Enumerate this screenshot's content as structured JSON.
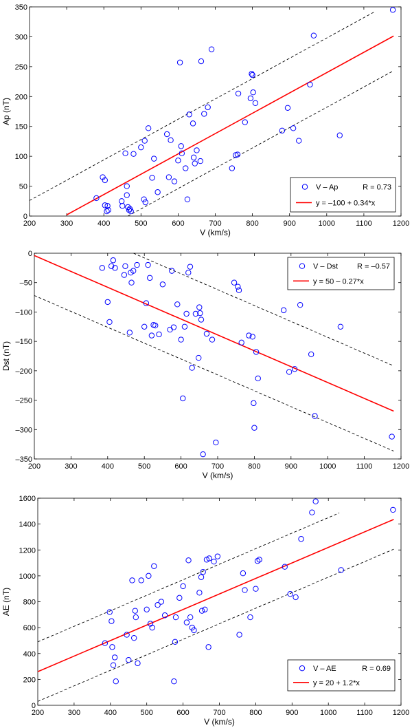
{
  "chart_data": [
    {
      "type": "scatter",
      "xlabel": "V (km/s)",
      "ylabel": "Ap (nT)",
      "xlim": [
        200,
        1200
      ],
      "ylim": [
        0,
        350
      ],
      "xticks": [
        200,
        300,
        400,
        500,
        600,
        700,
        800,
        900,
        1000,
        1100,
        1200
      ],
      "yticks": [
        0,
        50,
        100,
        150,
        200,
        250,
        300,
        350
      ],
      "xtick_labels": [
        "200",
        "300",
        "400",
        "500",
        "600",
        "700",
        "800",
        "900",
        "1000",
        "1100",
        "1200"
      ],
      "ytick_labels": [
        "0",
        "50",
        "100",
        "150",
        "200",
        "250",
        "300",
        "350"
      ],
      "legend_position": "bottom-right",
      "legend": [
        {
          "name": "V – Ap",
          "extra": "R = 0.73"
        },
        {
          "name": "y = –100 + 0.34*x",
          "extra": ""
        }
      ],
      "colors": {
        "points": "#0000ff",
        "fit": "#ff0000",
        "bounds": "#000000"
      },
      "fit": {
        "intercept": -100,
        "slope": 0.34,
        "x_range": [
          300,
          1180
        ]
      },
      "bounds": [
        {
          "intercept": -42,
          "slope": 0.34,
          "x_range": [
            200,
            1130
          ]
        },
        {
          "intercept": -158,
          "slope": 0.34,
          "x_range": [
            465,
            1180
          ]
        }
      ],
      "points": {
        "x": [
          380,
          397,
          403,
          403,
          408,
          410,
          412,
          448,
          450,
          458,
          462,
          462,
          465,
          468,
          470,
          473,
          480,
          500,
          508,
          510,
          512,
          520,
          530,
          535,
          545,
          570,
          575,
          580,
          590,
          600,
          605,
          608,
          610,
          620,
          625,
          630,
          640,
          642,
          645,
          650,
          660,
          662,
          670,
          680,
          690,
          745,
          755,
          760,
          762,
          780,
          795,
          798,
          800,
          802,
          808,
          880,
          895,
          910,
          925,
          955,
          965,
          1035,
          1178
        ],
        "y": [
          30,
          65,
          60,
          18,
          8,
          17,
          10,
          25,
          17,
          105,
          35,
          50,
          15,
          10,
          12,
          8,
          104,
          115,
          28,
          126,
          23,
          147,
          64,
          96,
          40,
          137,
          65,
          127,
          58,
          93,
          257,
          117,
          105,
          80,
          28,
          170,
          155,
          98,
          88,
          110,
          92,
          259,
          171,
          182,
          279,
          80,
          102,
          103,
          205,
          157,
          197,
          238,
          236,
          207,
          189,
          143,
          181,
          147,
          126,
          220,
          302,
          135,
          345
        ]
      }
    },
    {
      "type": "scatter",
      "xlabel": "V (km/s)",
      "ylabel": "Dst (nT)",
      "xlim": [
        200,
        1200
      ],
      "ylim": [
        -350,
        0
      ],
      "xticks": [
        200,
        300,
        400,
        500,
        600,
        700,
        800,
        900,
        1000,
        1100,
        1200
      ],
      "yticks": [
        -350,
        -300,
        -250,
        -200,
        -150,
        -100,
        -50,
        0
      ],
      "xtick_labels": [
        "200",
        "300",
        "400",
        "500",
        "600",
        "700",
        "800",
        "900",
        "1000",
        "1100",
        "1200"
      ],
      "ytick_labels": [
        "–350",
        "–300",
        "–250",
        "–200",
        "–150",
        "–100",
        "–50",
        "0"
      ],
      "legend_position": "top-right",
      "legend": [
        {
          "name": "V – Dst",
          "extra": "R = –0.57"
        },
        {
          "name": "y = 50 – 0.27*x",
          "extra": ""
        }
      ],
      "colors": {
        "points": "#0000ff",
        "fit": "#ff0000",
        "bounds": "#000000"
      },
      "fit": {
        "intercept": 50,
        "slope": -0.27,
        "x_range": [
          200,
          1180
        ]
      },
      "bounds": [
        {
          "intercept": 127,
          "slope": -0.27,
          "x_range": [
            470,
            1180
          ]
        },
        {
          "intercept": -18,
          "slope": -0.27,
          "x_range": [
            200,
            1180
          ]
        }
      ],
      "points": {
        "x": [
          385,
          400,
          405,
          410,
          415,
          420,
          445,
          448,
          460,
          463,
          465,
          470,
          480,
          500,
          505,
          510,
          515,
          520,
          525,
          530,
          540,
          550,
          570,
          575,
          580,
          590,
          600,
          605,
          610,
          615,
          620,
          625,
          630,
          640,
          648,
          650,
          652,
          655,
          660,
          670,
          685,
          695,
          745,
          755,
          758,
          765,
          785,
          795,
          798,
          800,
          805,
          810,
          880,
          895,
          910,
          925,
          955,
          965,
          1035,
          1175
        ],
        "y": [
          -25,
          -83,
          -117,
          -22,
          -12,
          -25,
          -37,
          -22,
          -135,
          -33,
          -50,
          -30,
          -20,
          -125,
          -85,
          -20,
          -42,
          -140,
          -122,
          -123,
          -138,
          -53,
          -130,
          -30,
          -126,
          -87,
          -147,
          -247,
          -125,
          -103,
          -33,
          -23,
          -195,
          -103,
          -178,
          -92,
          -102,
          -113,
          -342,
          -137,
          -147,
          -322,
          -50,
          -57,
          -63,
          -152,
          -140,
          -142,
          -255,
          -297,
          -168,
          -213,
          -97,
          -202,
          -197,
          -88,
          -172,
          -277,
          -125,
          -312
        ]
      }
    },
    {
      "type": "scatter",
      "xlabel": "V (km/s)",
      "ylabel": "AE (nT)",
      "xlim": [
        200,
        1200
      ],
      "ylim": [
        0,
        1600
      ],
      "xticks": [
        200,
        300,
        400,
        500,
        600,
        700,
        800,
        900,
        1000,
        1100,
        1200
      ],
      "yticks": [
        0,
        200,
        400,
        600,
        800,
        1000,
        1200,
        1400,
        1600
      ],
      "xtick_labels": [
        "200",
        "300",
        "400",
        "500",
        "600",
        "700",
        "800",
        "900",
        "1000",
        "1100",
        "1200"
      ],
      "ytick_labels": [
        "0",
        "200",
        "400",
        "600",
        "800",
        "1000",
        "1200",
        "1400",
        "1600"
      ],
      "legend_position": "bottom-right",
      "legend": [
        {
          "name": "V – AE",
          "extra": "R = 0.69"
        },
        {
          "name": "y = 20 + 1.2*x",
          "extra": ""
        }
      ],
      "colors": {
        "points": "#0000ff",
        "fit": "#ff0000",
        "bounds": "#000000"
      },
      "fit": {
        "intercept": 20,
        "slope": 1.2,
        "x_range": [
          200,
          1180
        ]
      },
      "bounds": [
        {
          "intercept": 250,
          "slope": 1.2,
          "x_range": [
            200,
            1030
          ]
        },
        {
          "intercept": -210,
          "slope": 1.2,
          "x_range": [
            200,
            1180
          ]
        }
      ],
      "points": {
        "x": [
          385,
          398,
          403,
          405,
          408,
          412,
          415,
          445,
          450,
          460,
          465,
          468,
          470,
          475,
          485,
          500,
          505,
          510,
          515,
          520,
          530,
          540,
          550,
          575,
          578,
          580,
          590,
          600,
          610,
          615,
          620,
          625,
          630,
          645,
          650,
          652,
          655,
          660,
          665,
          670,
          672,
          685,
          695,
          755,
          765,
          770,
          785,
          800,
          805,
          810,
          880,
          895,
          910,
          925,
          955,
          965,
          1035,
          1178
        ],
        "y": [
          480,
          720,
          650,
          450,
          310,
          370,
          185,
          545,
          350,
          965,
          520,
          730,
          680,
          325,
          965,
          740,
          1000,
          630,
          600,
          1075,
          775,
          800,
          695,
          185,
          490,
          680,
          830,
          920,
          640,
          1120,
          680,
          600,
          580,
          870,
          990,
          730,
          1030,
          740,
          1125,
          450,
          1135,
          1110,
          1150,
          545,
          1020,
          890,
          680,
          900,
          1115,
          1125,
          1070,
          860,
          835,
          1285,
          1490,
          1575,
          1045,
          1510
        ]
      }
    }
  ]
}
